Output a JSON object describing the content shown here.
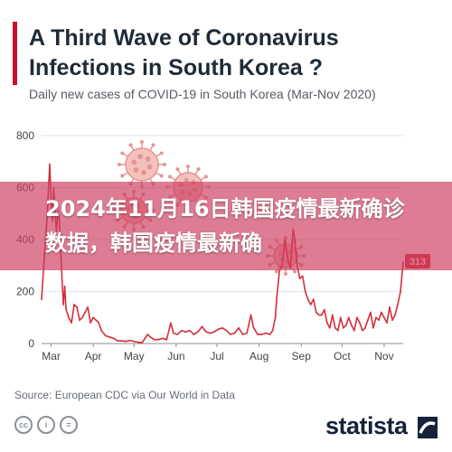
{
  "header": {
    "title": "A Third Wave of Coronavirus Infections in South Korea ?",
    "subtitle": "Daily new cases of COVID-19 in South Korea (Mar-Nov 2020)"
  },
  "overlay": {
    "headline": "2024年11月16日韩国疫情最新确诊数据，韩国疫情最新确"
  },
  "footer": {
    "source": "Source: European CDC via Our World in Data",
    "license_icons": [
      "cc",
      "i",
      "="
    ],
    "brand": "statista"
  },
  "colors": {
    "series": "#d3313c",
    "title": "#1f2a37",
    "accent": "#c8102e",
    "banner": "#cd3e5f",
    "virus": "#e07a78"
  },
  "chart_data": {
    "type": "line",
    "title": "A Third Wave of Coronavirus Infections in South Korea ?",
    "subtitle": "Daily new cases of COVID-19 in South Korea (Mar-Nov 2020)",
    "xlabel": "",
    "ylabel": "",
    "ylim": [
      0,
      800
    ],
    "yticks": [
      0,
      200,
      400,
      600,
      800
    ],
    "xticks": [
      "Mar",
      "Apr",
      "May",
      "Jun",
      "Jul",
      "Aug",
      "Sep",
      "Oct",
      "Nov"
    ],
    "xlim": [
      "2020-02-23",
      "2020-11-15"
    ],
    "grid": true,
    "end_label": "313",
    "series": [
      {
        "values": [
          [
            "2020-02-23",
            170
          ],
          [
            "2020-02-25",
            330
          ],
          [
            "2020-02-27",
            480
          ],
          [
            "2020-02-29",
            690
          ],
          [
            "2020-03-01",
            560
          ],
          [
            "2020-03-02",
            470
          ],
          [
            "2020-03-03",
            600
          ],
          [
            "2020-03-04",
            500
          ],
          [
            "2020-03-05",
            430
          ],
          [
            "2020-03-06",
            510
          ],
          [
            "2020-03-07",
            480
          ],
          [
            "2020-03-08",
            360
          ],
          [
            "2020-03-09",
            250
          ],
          [
            "2020-03-10",
            150
          ],
          [
            "2020-03-11",
            220
          ],
          [
            "2020-03-12",
            130
          ],
          [
            "2020-03-14",
            100
          ],
          [
            "2020-03-16",
            80
          ],
          [
            "2020-03-18",
            150
          ],
          [
            "2020-03-20",
            140
          ],
          [
            "2020-03-22",
            90
          ],
          [
            "2020-03-24",
            100
          ],
          [
            "2020-03-26",
            120
          ],
          [
            "2020-03-28",
            140
          ],
          [
            "2020-03-30",
            80
          ],
          [
            "2020-04-01",
            100
          ],
          [
            "2020-04-03",
            90
          ],
          [
            "2020-04-05",
            80
          ],
          [
            "2020-04-07",
            50
          ],
          [
            "2020-04-10",
            30
          ],
          [
            "2020-04-13",
            25
          ],
          [
            "2020-04-16",
            20
          ],
          [
            "2020-04-19",
            10
          ],
          [
            "2020-04-22",
            10
          ],
          [
            "2020-04-25",
            8
          ],
          [
            "2020-04-28",
            12
          ],
          [
            "2020-05-01",
            8
          ],
          [
            "2020-05-04",
            5
          ],
          [
            "2020-05-07",
            3
          ],
          [
            "2020-05-09",
            20
          ],
          [
            "2020-05-11",
            35
          ],
          [
            "2020-05-13",
            25
          ],
          [
            "2020-05-16",
            15
          ],
          [
            "2020-05-19",
            15
          ],
          [
            "2020-05-22",
            20
          ],
          [
            "2020-05-25",
            15
          ],
          [
            "2020-05-28",
            79
          ],
          [
            "2020-05-30",
            40
          ],
          [
            "2020-06-02",
            35
          ],
          [
            "2020-06-05",
            50
          ],
          [
            "2020-06-08",
            45
          ],
          [
            "2020-06-11",
            50
          ],
          [
            "2020-06-14",
            35
          ],
          [
            "2020-06-17",
            45
          ],
          [
            "2020-06-20",
            65
          ],
          [
            "2020-06-23",
            45
          ],
          [
            "2020-06-26",
            40
          ],
          [
            "2020-06-29",
            45
          ],
          [
            "2020-07-02",
            55
          ],
          [
            "2020-07-05",
            60
          ],
          [
            "2020-07-08",
            50
          ],
          [
            "2020-07-11",
            35
          ],
          [
            "2020-07-14",
            40
          ],
          [
            "2020-07-17",
            60
          ],
          [
            "2020-07-20",
            35
          ],
          [
            "2020-07-23",
            40
          ],
          [
            "2020-07-26",
            110
          ],
          [
            "2020-07-28",
            60
          ],
          [
            "2020-07-31",
            35
          ],
          [
            "2020-08-03",
            35
          ],
          [
            "2020-08-06",
            40
          ],
          [
            "2020-08-09",
            35
          ],
          [
            "2020-08-11",
            50
          ],
          [
            "2020-08-13",
            100
          ],
          [
            "2020-08-14",
            180
          ],
          [
            "2020-08-16",
            280
          ],
          [
            "2020-08-18",
            300
          ],
          [
            "2020-08-20",
            400
          ],
          [
            "2020-08-22",
            330
          ],
          [
            "2020-08-24",
            290
          ],
          [
            "2020-08-26",
            440
          ],
          [
            "2020-08-27",
            410
          ],
          [
            "2020-08-29",
            300
          ],
          [
            "2020-08-31",
            250
          ],
          [
            "2020-09-02",
            260
          ],
          [
            "2020-09-04",
            200
          ],
          [
            "2020-09-06",
            170
          ],
          [
            "2020-09-08",
            150
          ],
          [
            "2020-09-10",
            170
          ],
          [
            "2020-09-12",
            120
          ],
          [
            "2020-09-14",
            110
          ],
          [
            "2020-09-16",
            110
          ],
          [
            "2020-09-18",
            130
          ],
          [
            "2020-09-20",
            80
          ],
          [
            "2020-09-22",
            60
          ],
          [
            "2020-09-24",
            110
          ],
          [
            "2020-09-26",
            60
          ],
          [
            "2020-09-28",
            50
          ],
          [
            "2020-09-30",
            100
          ],
          [
            "2020-10-02",
            60
          ],
          [
            "2020-10-04",
            70
          ],
          [
            "2020-10-06",
            100
          ],
          [
            "2020-10-08",
            70
          ],
          [
            "2020-10-10",
            50
          ],
          [
            "2020-10-12",
            100
          ],
          [
            "2020-10-14",
            80
          ],
          [
            "2020-10-16",
            50
          ],
          [
            "2020-10-18",
            60
          ],
          [
            "2020-10-20",
            90
          ],
          [
            "2020-10-22",
            120
          ],
          [
            "2020-10-24",
            60
          ],
          [
            "2020-10-26",
            100
          ],
          [
            "2020-10-28",
            90
          ],
          [
            "2020-10-30",
            120
          ],
          [
            "2020-11-01",
            100
          ],
          [
            "2020-11-03",
            80
          ],
          [
            "2020-11-05",
            140
          ],
          [
            "2020-11-07",
            90
          ],
          [
            "2020-11-09",
            110
          ],
          [
            "2020-11-11",
            150
          ],
          [
            "2020-11-13",
            200
          ],
          [
            "2020-11-15",
            313
          ]
        ]
      }
    ]
  }
}
